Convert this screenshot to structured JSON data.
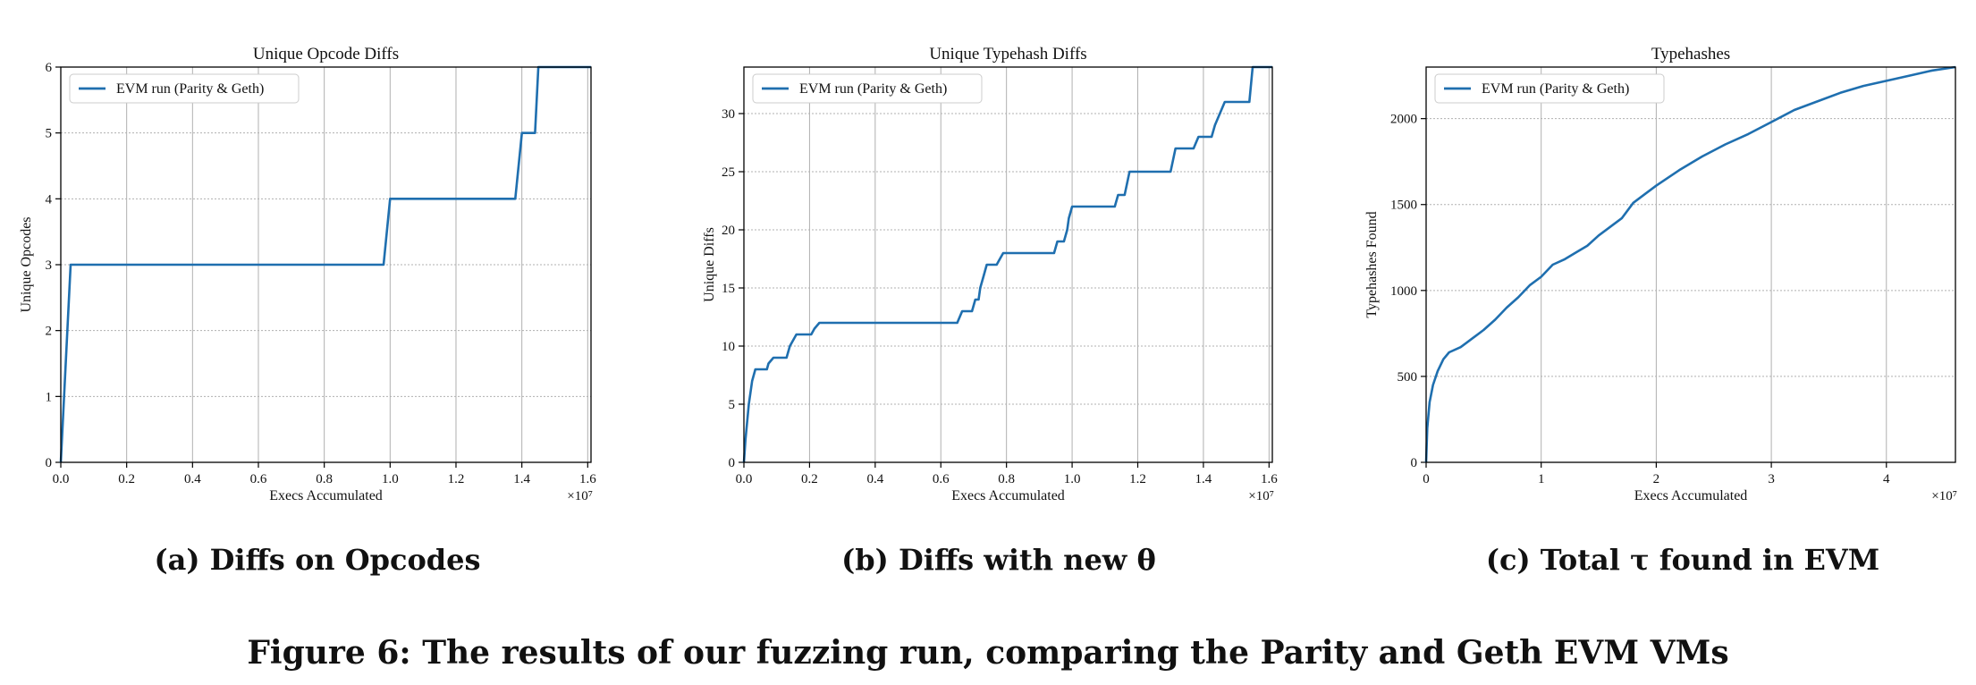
{
  "chart_data": [
    {
      "type": "line",
      "title": "Unique Opcode Diffs",
      "xlabel": "Execs Accumulated",
      "ylabel": "Unique Opcodes",
      "x_multiplier": "×10⁷",
      "xlim": [
        0,
        1.61
      ],
      "ylim": [
        0,
        6
      ],
      "xticks": [
        "0.0",
        "0.2",
        "0.4",
        "0.6",
        "0.8",
        "1.0",
        "1.2",
        "1.4",
        "1.6"
      ],
      "yticks": [
        "0",
        "1",
        "2",
        "3",
        "4",
        "5",
        "6"
      ],
      "legend": "top-left",
      "grid": true,
      "series": [
        {
          "name": "EVM run (Parity & Geth)",
          "x": [
            0,
            0.03,
            0.98,
            1.0,
            1.38,
            1.4,
            1.44,
            1.45,
            1.61
          ],
          "y": [
            0,
            3,
            3,
            4,
            4,
            5,
            5,
            6,
            6
          ]
        }
      ],
      "caption": "(a) Diffs on Opcodes"
    },
    {
      "type": "line",
      "title": "Unique Typehash Diffs",
      "xlabel": "Execs Accumulated",
      "ylabel": "Unique Diffs",
      "x_multiplier": "×10⁷",
      "xlim": [
        0,
        1.61
      ],
      "ylim": [
        0,
        34
      ],
      "xticks": [
        "0.0",
        "0.2",
        "0.4",
        "0.6",
        "0.8",
        "1.0",
        "1.2",
        "1.4",
        "1.6"
      ],
      "yticks": [
        "0",
        "5",
        "10",
        "15",
        "20",
        "25",
        "30"
      ],
      "legend": "top-left",
      "grid": true,
      "series": [
        {
          "name": "EVM run (Parity & Geth)",
          "x": [
            0,
            0.005,
            0.015,
            0.025,
            0.035,
            0.07,
            0.075,
            0.09,
            0.13,
            0.14,
            0.16,
            0.205,
            0.215,
            0.23,
            0.65,
            0.665,
            0.695,
            0.705,
            0.715,
            0.72,
            0.73,
            0.74,
            0.77,
            0.78,
            0.79,
            0.805,
            0.945,
            0.955,
            0.975,
            0.985,
            0.99,
            1.0,
            1.13,
            1.14,
            1.16,
            1.175,
            1.3,
            1.315,
            1.37,
            1.385,
            1.425,
            1.435,
            1.465,
            1.48,
            1.54,
            1.55,
            1.61
          ],
          "y": [
            0,
            2,
            5,
            7,
            8,
            8,
            8.5,
            9,
            9,
            10,
            11,
            11,
            11.5,
            12,
            12,
            13,
            13,
            14,
            14,
            15,
            16,
            17,
            17,
            17.5,
            18,
            18,
            18,
            19,
            19,
            20,
            21,
            22,
            22,
            23,
            23,
            25,
            25,
            27,
            27,
            28,
            28,
            29,
            31,
            31,
            31,
            34,
            34
          ]
        }
      ],
      "caption": "(b) Diffs with new θ"
    },
    {
      "type": "line",
      "title": "Typehashes",
      "xlabel": "Execs Accumulated",
      "ylabel": "Typehashes Found",
      "x_multiplier": "×10⁷",
      "xlim": [
        0,
        4.6
      ],
      "ylim": [
        0,
        2300
      ],
      "xticks": [
        "0",
        "1",
        "2",
        "3",
        "4"
      ],
      "yticks": [
        "0",
        "500",
        "1000",
        "1500",
        "2000"
      ],
      "legend": "top-left",
      "grid": true,
      "series": [
        {
          "name": "EVM run (Parity & Geth)",
          "x": [
            0,
            0.01,
            0.03,
            0.06,
            0.1,
            0.15,
            0.2,
            0.3,
            0.4,
            0.5,
            0.6,
            0.7,
            0.8,
            0.9,
            1.0,
            1.1,
            1.2,
            1.3,
            1.4,
            1.5,
            1.6,
            1.7,
            1.8,
            1.9,
            2.0,
            2.2,
            2.4,
            2.6,
            2.8,
            3.0,
            3.2,
            3.4,
            3.6,
            3.8,
            4.0,
            4.2,
            4.4,
            4.6
          ],
          "y": [
            0,
            200,
            350,
            450,
            530,
            600,
            640,
            670,
            720,
            770,
            830,
            900,
            960,
            1030,
            1080,
            1150,
            1180,
            1220,
            1260,
            1320,
            1370,
            1420,
            1510,
            1560,
            1610,
            1700,
            1780,
            1850,
            1910,
            1980,
            2050,
            2100,
            2150,
            2190,
            2220,
            2250,
            2280,
            2300
          ]
        }
      ],
      "caption": "(c) Total τ found in EVM"
    }
  ],
  "figure_caption": "Figure 6: The results of our fuzzing run, comparing the Parity and Geth EVM VMs",
  "colors": {
    "line": "#1f6faf",
    "grid": "#b0b0b0",
    "axis": "#000000"
  }
}
